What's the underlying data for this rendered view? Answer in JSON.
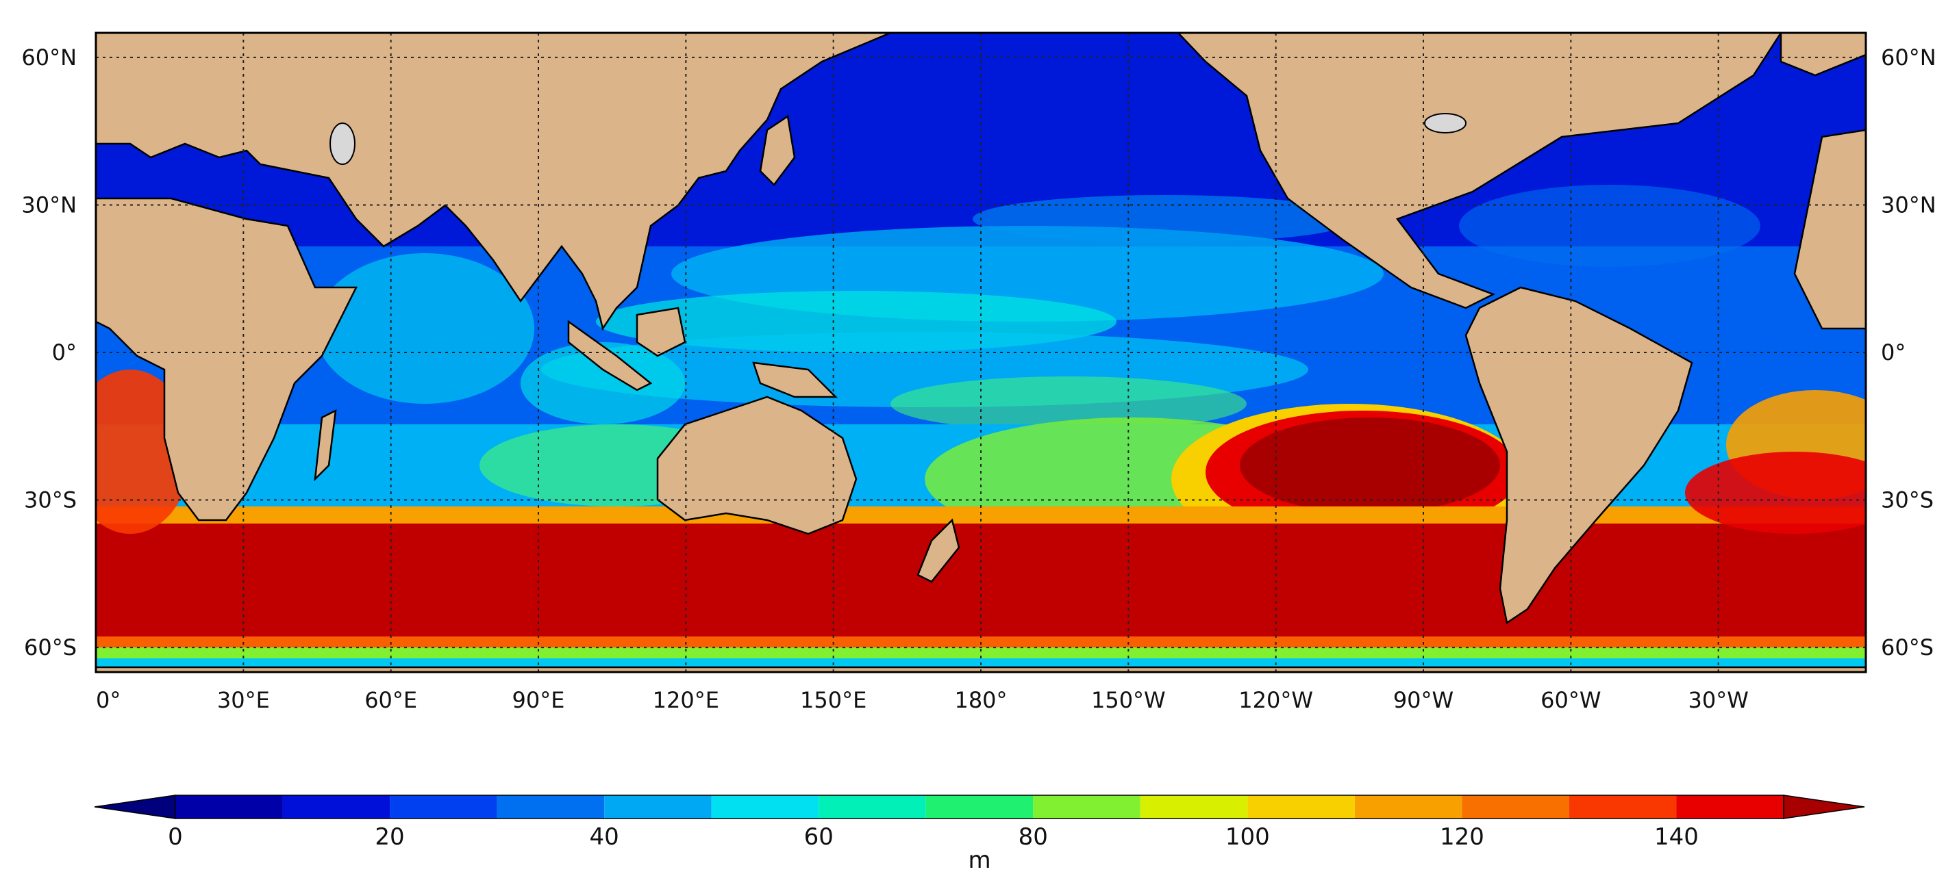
{
  "map": {
    "lat_ticks": [
      "60°N",
      "30°N",
      "0°",
      "30°S",
      "60°S"
    ],
    "lat_values": [
      60,
      30,
      0,
      -30,
      -60
    ],
    "lon_ticks": [
      "0°",
      "30°E",
      "60°E",
      "90°E",
      "120°E",
      "150°E",
      "180°",
      "150°W",
      "120°W",
      "90°W",
      "60°W",
      "30°W"
    ],
    "lon_values": [
      0,
      30,
      60,
      90,
      120,
      150,
      180,
      210,
      240,
      270,
      300,
      330
    ],
    "lat_range": [
      -65,
      65
    ],
    "lon_range": [
      0,
      360
    ],
    "land_color": "#dcb489",
    "lake_color": "#d8d8d8"
  },
  "colorbar": {
    "label": "m",
    "ticks": [
      "0",
      "20",
      "40",
      "60",
      "80",
      "100",
      "120",
      "140"
    ],
    "tick_values": [
      0,
      20,
      40,
      60,
      80,
      100,
      120,
      140
    ],
    "range": [
      0,
      150
    ],
    "extend": "both",
    "levels": [
      {
        "from": 0,
        "to": 10,
        "color": "#0000a8"
      },
      {
        "from": 10,
        "to": 20,
        "color": "#0010d8"
      },
      {
        "from": 20,
        "to": 30,
        "color": "#0040f0"
      },
      {
        "from": 30,
        "to": 40,
        "color": "#0070f0"
      },
      {
        "from": 40,
        "to": 50,
        "color": "#00a8f4"
      },
      {
        "from": 50,
        "to": 60,
        "color": "#00e0f0"
      },
      {
        "from": 60,
        "to": 70,
        "color": "#00f0b8"
      },
      {
        "from": 70,
        "to": 80,
        "color": "#20f070"
      },
      {
        "from": 80,
        "to": 90,
        "color": "#80f030"
      },
      {
        "from": 90,
        "to": 100,
        "color": "#d8f000"
      },
      {
        "from": 100,
        "to": 110,
        "color": "#f8d000"
      },
      {
        "from": 110,
        "to": 120,
        "color": "#f8a000"
      },
      {
        "from": 120,
        "to": 130,
        "color": "#f87000"
      },
      {
        "from": 130,
        "to": 140,
        "color": "#f83800"
      },
      {
        "from": 140,
        "to": 150,
        "color": "#e80000"
      }
    ],
    "under_color": "#00007c",
    "over_color": "#a80000"
  }
}
